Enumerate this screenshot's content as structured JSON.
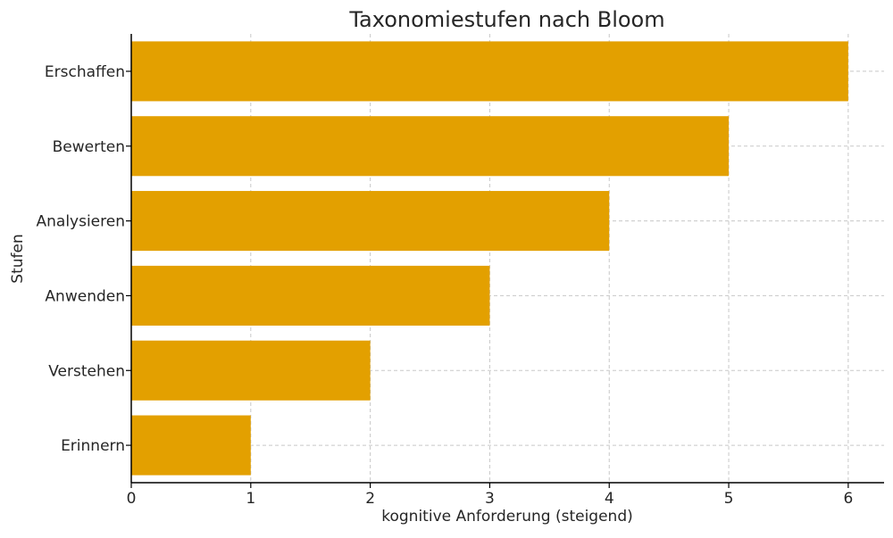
{
  "chart_data": {
    "type": "bar",
    "orientation": "horizontal",
    "title": "Taxonomiestufen nach Bloom",
    "xlabel": "kognitive Anforderung (steigend)",
    "ylabel": "Stufen",
    "categories": [
      "Erinnern",
      "Verstehen",
      "Anwenden",
      "Analysieren",
      "Bewerten",
      "Erschaffen"
    ],
    "values": [
      1,
      2,
      3,
      4,
      5,
      6
    ],
    "xlim": [
      0,
      6.3
    ],
    "xticks": [
      0,
      1,
      2,
      3,
      4,
      5,
      6
    ],
    "grid": true,
    "bar_color": "#E3A000",
    "legend": "none"
  }
}
